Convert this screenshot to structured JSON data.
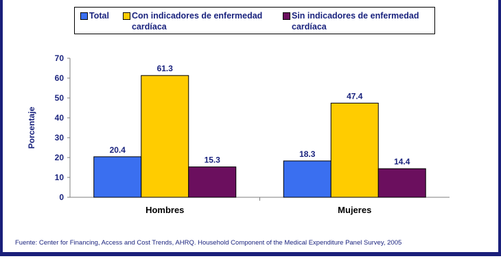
{
  "chart_data": {
    "type": "bar",
    "categories": [
      "Hombres",
      "Mujeres"
    ],
    "series": [
      {
        "name": "Total",
        "values": [
          20.4,
          18.3
        ],
        "color": "#3a6ff0"
      },
      {
        "name": "Con indicadores de enfermedad cardíaca",
        "values": [
          61.3,
          47.4
        ],
        "color": "#ffcc00"
      },
      {
        "name": "Sin indicadores de enfermedad cardíaca",
        "values": [
          15.3,
          14.4
        ],
        "color": "#6b0f5e"
      }
    ],
    "value_labels": [
      [
        "20.4",
        "18.3"
      ],
      [
        "61.3",
        "47.4"
      ],
      [
        "15.3",
        "14.4"
      ]
    ],
    "ylabel": "Porcentaje",
    "ylim": [
      0,
      70
    ],
    "yticks": [
      "0",
      "10",
      "20",
      "30",
      "40",
      "50",
      "60",
      "70"
    ],
    "grid": false,
    "legend_position": "top"
  },
  "legend": {
    "items": [
      {
        "line1": "Total",
        "line2": ""
      },
      {
        "line1": "Con indicadores de enfermedad",
        "line2": "cardíaca"
      },
      {
        "line1": "Sin indicadores de enfermedad",
        "line2": "cardíaca"
      }
    ]
  },
  "source": "Fuente: Center for Financing, Access and Cost Trends, AHRQ. Household Component of the Medical Expenditure Panel Survey, 2005"
}
